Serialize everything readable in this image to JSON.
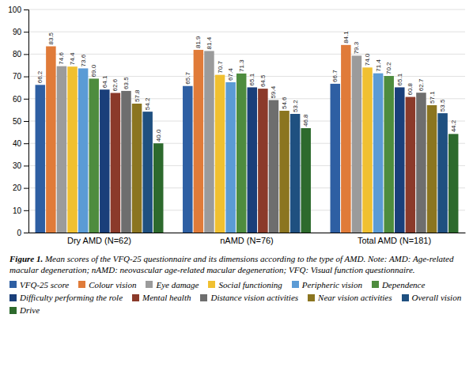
{
  "chart_data": {
    "type": "bar",
    "title": "Figure 1.",
    "subtitle": "Mean scores of the VFQ-25 questionnaire and its dimensions according to the type of AMD. Note: AMD: Age-related macular degeneration; nAMD: neovascular age-related macular degeneration; VFQ: Visual function questionnaire.",
    "categories": [
      "Dry AMD (N=62)",
      "nAMD (N=76)",
      "Total AMD (N=181)"
    ],
    "series": [
      {
        "name": "VFQ-25 score",
        "color": "#2e5fa3",
        "values": [
          66.2,
          65.7,
          66.7
        ],
        "value_labels": [
          "66.2",
          "65.7",
          "66.7"
        ]
      },
      {
        "name": "Colour vision",
        "color": "#e07b39",
        "values": [
          83.5,
          81.9,
          84.1
        ],
        "value_labels": [
          "83.5",
          "81.9",
          "84.1"
        ]
      },
      {
        "name": "Eye damage",
        "color": "#9b9b9b",
        "values": [
          74.6,
          81.4,
          79.3
        ],
        "value_labels": [
          "74.6",
          "81.4",
          "79.3"
        ]
      },
      {
        "name": "Social functioning",
        "color": "#f0c030",
        "values": [
          74.4,
          70.7,
          74.0
        ],
        "value_labels": [
          "74.4",
          "70.7",
          "74.0"
        ]
      },
      {
        "name": "Peripheric vision",
        "color": "#5b9bd5",
        "values": [
          73.6,
          67.4,
          71.4
        ],
        "value_labels": [
          "73.6",
          "67.4",
          "71.4"
        ]
      },
      {
        "name": "Dependence",
        "color": "#4e8c3e",
        "values": [
          69.0,
          71.3,
          70.2
        ],
        "value_labels": [
          "69.0",
          "71.3",
          "70.2"
        ]
      },
      {
        "name": "Difficulty performing the role",
        "color": "#1a3f7a",
        "values": [
          64.1,
          65.1,
          65.1
        ],
        "value_labels": [
          "64.1",
          "65.1",
          "65.1"
        ]
      },
      {
        "name": "Mental health",
        "color": "#8b3a2a",
        "values": [
          62.6,
          64.5,
          60.8
        ],
        "value_labels": [
          "62.6",
          "64.5",
          "60.8"
        ]
      },
      {
        "name": "Distance vision activities",
        "color": "#6e6e6e",
        "values": [
          63.5,
          59.4,
          62.7
        ],
        "value_labels": [
          "63.5",
          "59.4",
          "62.7"
        ]
      },
      {
        "name": "Near vision activities",
        "color": "#8b7520",
        "values": [
          57.8,
          54.6,
          57.1
        ],
        "value_labels": [
          "57.8",
          "54.6",
          "57.1"
        ]
      },
      {
        "name": "Overall vision",
        "color": "#1f5080",
        "values": [
          54.2,
          53.2,
          53.5
        ],
        "value_labels": [
          "54.2",
          "53.2",
          "53.5"
        ]
      },
      {
        "name": "Drive",
        "color": "#2d6a2d",
        "values": [
          40.0,
          46.8,
          44.2
        ],
        "value_labels": [
          "40.0",
          "46.8",
          "44.2"
        ]
      }
    ],
    "ylim": [
      0,
      100
    ],
    "yticks": [
      0,
      10,
      20,
      30,
      40,
      50,
      60,
      70,
      80,
      90,
      100
    ],
    "grid": true,
    "data_labels": true,
    "legend": "bottom"
  }
}
